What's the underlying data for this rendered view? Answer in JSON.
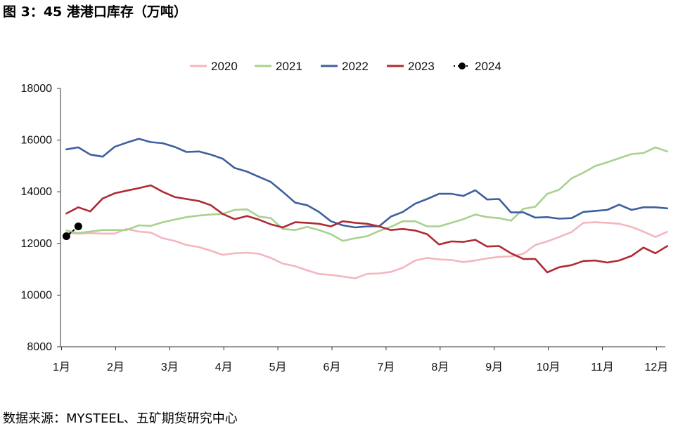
{
  "title": "图 3：45 港港口库存（万吨）",
  "source": "数据来源：MYSTEEL、五矿期货研究中心",
  "chart_data": {
    "type": "line",
    "title": "图 3：45 港港口库存（万吨）",
    "ylabel": "",
    "xlabel": "",
    "ylim": [
      8000,
      18000
    ],
    "yticks": [
      8000,
      10000,
      12000,
      14000,
      16000,
      18000
    ],
    "xlim": [
      1.0,
      12.3
    ],
    "xtick_values": [
      1,
      2,
      3,
      4,
      5,
      6,
      7,
      8,
      9,
      10,
      11,
      12
    ],
    "xtick_labels": [
      "1月",
      "2月",
      "3月",
      "4月",
      "5月",
      "6月",
      "7月",
      "8月",
      "9月",
      "10月",
      "11月",
      "12月"
    ],
    "legend_position": "top",
    "grid": false,
    "series": [
      {
        "name": "2020",
        "color": "#f4b6bf",
        "marker": false,
        "dashed": false,
        "x": [
          1.09,
          1.31,
          1.53,
          1.76,
          1.98,
          2.2,
          2.43,
          2.65,
          2.87,
          3.09,
          3.31,
          3.54,
          3.76,
          3.98,
          4.2,
          4.43,
          4.65,
          4.87,
          5.09,
          5.32,
          5.54,
          5.76,
          5.98,
          6.2,
          6.43,
          6.65,
          6.87,
          7.09,
          7.31,
          7.54,
          7.76,
          7.98,
          8.21,
          8.43,
          8.65,
          8.87,
          9.09,
          9.31,
          9.54,
          9.76,
          9.98,
          10.2,
          10.43,
          10.65,
          10.87,
          11.09,
          11.31,
          11.54,
          11.76,
          11.98,
          12.2
        ],
        "values": [
          12400,
          12380,
          12400,
          12380,
          12380,
          12560,
          12460,
          12420,
          12200,
          12100,
          11940,
          11860,
          11720,
          11560,
          11620,
          11640,
          11600,
          11440,
          11220,
          11120,
          10960,
          10820,
          10780,
          10720,
          10650,
          10820,
          10840,
          10900,
          11060,
          11340,
          11440,
          11380,
          11360,
          11280,
          11340,
          11420,
          11480,
          11500,
          11600,
          11940,
          12080,
          12250,
          12440,
          12800,
          12820,
          12800,
          12760,
          12640,
          12460,
          12250,
          12450
        ]
      },
      {
        "name": "2021",
        "color": "#a9d18e",
        "marker": false,
        "dashed": false,
        "x": [
          1.09,
          1.31,
          1.53,
          1.76,
          1.98,
          2.2,
          2.43,
          2.65,
          2.87,
          3.09,
          3.31,
          3.54,
          3.76,
          3.98,
          4.2,
          4.43,
          4.65,
          4.87,
          5.09,
          5.32,
          5.54,
          5.76,
          5.98,
          6.2,
          6.43,
          6.65,
          6.87,
          7.09,
          7.31,
          7.54,
          7.76,
          7.98,
          8.21,
          8.43,
          8.65,
          8.87,
          9.09,
          9.31,
          9.54,
          9.76,
          9.98,
          10.2,
          10.43,
          10.65,
          10.87,
          11.09,
          11.31,
          11.54,
          11.76,
          11.98,
          12.2
        ],
        "values": [
          12500,
          12400,
          12460,
          12520,
          12520,
          12520,
          12700,
          12680,
          12820,
          12920,
          13020,
          13080,
          13120,
          13140,
          13300,
          13320,
          13040,
          12980,
          12560,
          12520,
          12640,
          12520,
          12360,
          12100,
          12200,
          12280,
          12480,
          12640,
          12860,
          12860,
          12660,
          12660,
          12800,
          12940,
          13120,
          13020,
          12980,
          12880,
          13340,
          13420,
          13920,
          14080,
          14520,
          14740,
          15000,
          15140,
          15300,
          15460,
          15500,
          15720,
          15560
        ]
      },
      {
        "name": "2022",
        "color": "#3d5f9e",
        "marker": false,
        "dashed": false,
        "x": [
          1.09,
          1.31,
          1.53,
          1.76,
          1.98,
          2.2,
          2.43,
          2.65,
          2.87,
          3.09,
          3.31,
          3.54,
          3.76,
          3.98,
          4.2,
          4.43,
          4.65,
          4.87,
          5.09,
          5.32,
          5.54,
          5.76,
          5.98,
          6.2,
          6.43,
          6.65,
          6.87,
          7.09,
          7.31,
          7.54,
          7.76,
          7.98,
          8.21,
          8.43,
          8.65,
          8.87,
          9.09,
          9.31,
          9.54,
          9.76,
          9.98,
          10.2,
          10.43,
          10.65,
          10.87,
          11.09,
          11.31,
          11.54,
          11.76,
          11.98,
          12.2
        ],
        "values": [
          15640,
          15720,
          15440,
          15360,
          15740,
          15900,
          16050,
          15920,
          15880,
          15740,
          15540,
          15560,
          15440,
          15280,
          14920,
          14780,
          14580,
          14380,
          14000,
          13580,
          13480,
          13220,
          12860,
          12700,
          12620,
          12660,
          12660,
          13040,
          13220,
          13540,
          13720,
          13920,
          13920,
          13840,
          14060,
          13700,
          13720,
          13200,
          13200,
          13000,
          13020,
          12960,
          12980,
          13220,
          13260,
          13300,
          13500,
          13300,
          13400,
          13400,
          13360
        ]
      },
      {
        "name": "2023",
        "color": "#b02a35",
        "marker": false,
        "dashed": false,
        "x": [
          1.09,
          1.31,
          1.53,
          1.76,
          1.98,
          2.2,
          2.43,
          2.65,
          2.87,
          3.09,
          3.31,
          3.54,
          3.76,
          3.98,
          4.2,
          4.43,
          4.65,
          4.87,
          5.09,
          5.32,
          5.54,
          5.76,
          5.98,
          6.2,
          6.43,
          6.65,
          6.87,
          7.09,
          7.31,
          7.54,
          7.76,
          7.98,
          8.21,
          8.43,
          8.65,
          8.87,
          9.09,
          9.31,
          9.54,
          9.76,
          9.98,
          10.2,
          10.43,
          10.65,
          10.87,
          11.09,
          11.31,
          11.54,
          11.76,
          11.98,
          12.2
        ],
        "values": [
          13160,
          13400,
          13240,
          13740,
          13940,
          14040,
          14140,
          14250,
          14000,
          13800,
          13720,
          13640,
          13480,
          13140,
          12940,
          13060,
          12920,
          12740,
          12620,
          12820,
          12800,
          12760,
          12660,
          12860,
          12800,
          12760,
          12660,
          12520,
          12560,
          12500,
          12360,
          11960,
          12080,
          12060,
          12140,
          11880,
          11900,
          11620,
          11400,
          11400,
          10880,
          11080,
          11160,
          11320,
          11340,
          11260,
          11340,
          11520,
          11840,
          11620,
          11900
        ]
      },
      {
        "name": "2024",
        "color": "#000000",
        "marker": true,
        "dashed": true,
        "x": [
          1.09,
          1.31
        ],
        "values": [
          12280,
          12660
        ]
      }
    ]
  }
}
